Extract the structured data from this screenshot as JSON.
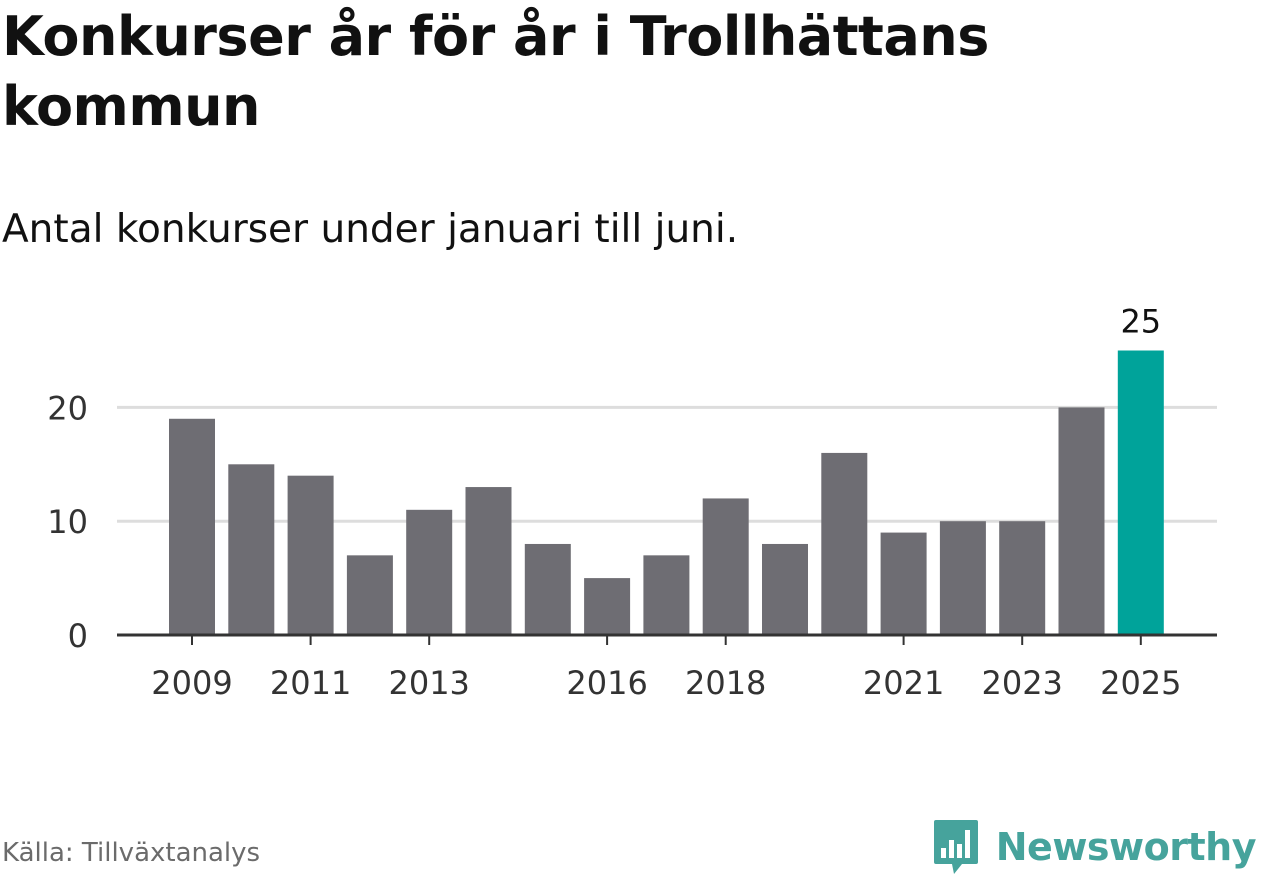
{
  "header": {
    "title": "Konkurser år för år i Trollhättans kommun",
    "subtitle": "Antal konkurser under januari till juni."
  },
  "footer": {
    "source": "Källa: Tillväxtanalys",
    "brand": "Newsworthy",
    "brand_icon": "bar-chart-speech-bubble-icon"
  },
  "colors": {
    "bar": "#6e6d73",
    "highlight": "#00a39a",
    "grid": "#dddddd",
    "axis": "#333333",
    "brand": "#46a39c"
  },
  "chart_data": {
    "type": "bar",
    "categories": [
      "2009",
      "2010",
      "2011",
      "2012",
      "2013",
      "2014",
      "2015",
      "2016",
      "2017",
      "2018",
      "2019",
      "2020",
      "2021",
      "2022",
      "2023",
      "2024",
      "2025"
    ],
    "values": [
      19,
      15,
      14,
      7,
      11,
      13,
      8,
      5,
      7,
      12,
      8,
      16,
      9,
      10,
      10,
      20,
      25
    ],
    "highlight_index": 16,
    "highlight_label": "25",
    "x_tick_labels": [
      "2009",
      "2011",
      "2013",
      "2016",
      "2018",
      "2021",
      "2023",
      "2025"
    ],
    "y_ticks": [
      0,
      10,
      20
    ],
    "ylim": [
      0,
      25
    ],
    "grid": true,
    "xlabel": "",
    "ylabel": ""
  }
}
